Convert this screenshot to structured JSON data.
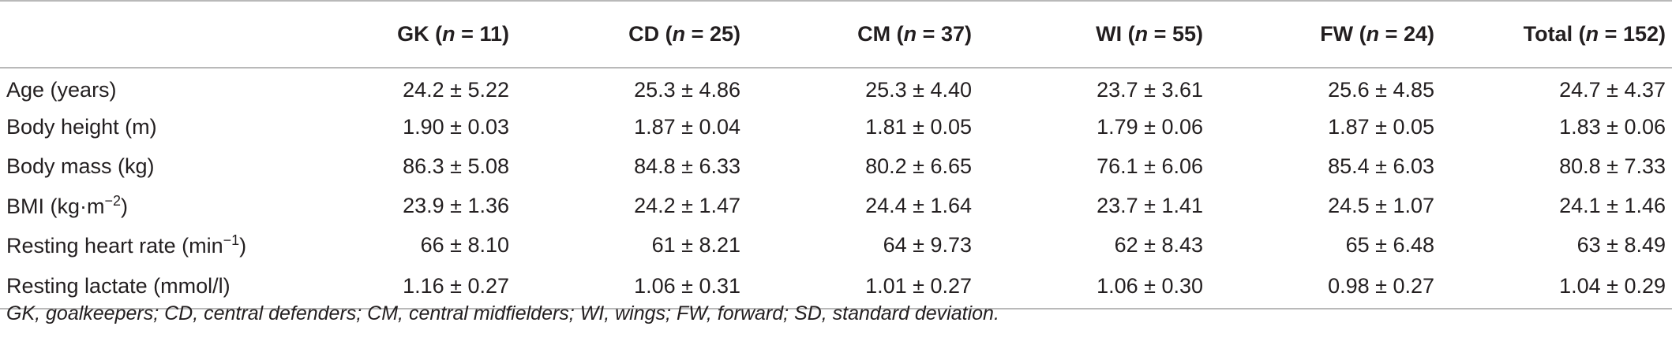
{
  "table": {
    "columns": [
      {
        "name": "GK",
        "n": "11"
      },
      {
        "name": "CD",
        "n": "25"
      },
      {
        "name": "CM",
        "n": "37"
      },
      {
        "name": "WI",
        "n": "55"
      },
      {
        "name": "FW",
        "n": "24"
      },
      {
        "name": "Total",
        "n": "152"
      }
    ],
    "n_symbol": "n",
    "rows": [
      {
        "label": "Age (years)",
        "values": [
          "24.2 ± 5.22",
          "25.3 ± 4.86",
          "25.3 ± 4.40",
          "23.7 ± 3.61",
          "25.6 ± 4.85",
          "24.7 ± 4.37"
        ]
      },
      {
        "label": "Body height (m)",
        "values": [
          "1.90 ± 0.03",
          "1.87 ± 0.04",
          "1.81 ± 0.05",
          "1.79 ± 0.06",
          "1.87 ± 0.05",
          "1.83 ± 0.06"
        ]
      },
      {
        "label": "Body mass (kg)",
        "values": [
          "86.3 ± 5.08",
          "84.8 ± 6.33",
          "80.2 ± 6.65",
          "76.1 ± 6.06",
          "85.4 ± 6.03",
          "80.8 ± 7.33"
        ]
      },
      {
        "label": "BMI (kg·m",
        "label_sup": "−2",
        "label_after": ")",
        "values": [
          "23.9 ± 1.36",
          "24.2 ± 1.47",
          "24.4 ± 1.64",
          "23.7 ± 1.41",
          "24.5 ± 1.07",
          "24.1 ± 1.46"
        ]
      },
      {
        "label": "Resting heart rate (min",
        "label_sup": "−1",
        "label_after": ")",
        "values": [
          "66 ± 8.10",
          "61 ± 8.21",
          "64 ± 9.73",
          "62 ± 8.43",
          "65 ± 6.48",
          "63 ± 8.49"
        ]
      },
      {
        "label": "Resting lactate (mmol/l)",
        "values": [
          "1.16 ± 0.27",
          "1.06 ± 0.31",
          "1.01 ± 0.27",
          "1.06 ± 0.30",
          "0.98 ± 0.27",
          "1.04 ± 0.29"
        ]
      }
    ]
  },
  "footnote": "GK, goalkeepers; CD, central defenders; CM, central midfielders; WI, wings; FW, forward; SD, standard deviation."
}
